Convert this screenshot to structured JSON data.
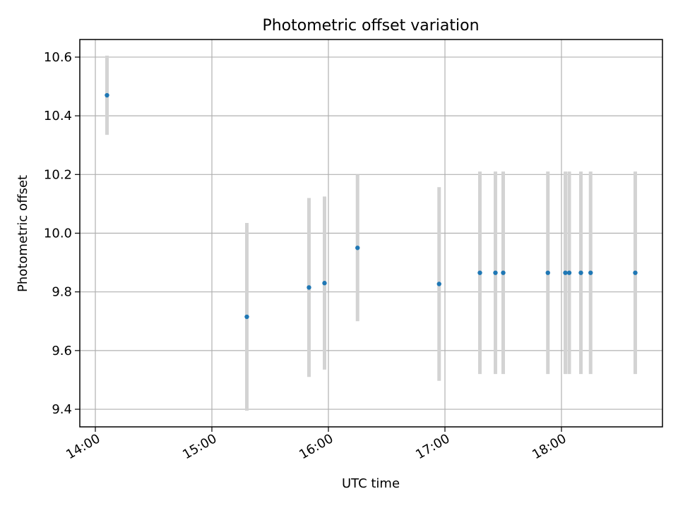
{
  "chart_data": {
    "type": "scatter",
    "title": "Photometric offset variation",
    "xlabel": "UTC time",
    "ylabel": "Photometric offset",
    "x_ticks": [
      "14:00",
      "15:00",
      "16:00",
      "17:00",
      "18:00"
    ],
    "y_ticks": [
      "9.4",
      "9.6",
      "9.8",
      "10.0",
      "10.2",
      "10.4",
      "10.6"
    ],
    "xlim": [
      "13:52",
      "18:52"
    ],
    "ylim": [
      9.34,
      10.66
    ],
    "grid": true,
    "series": [
      {
        "x": [
          "14:06",
          "15:18",
          "15:50",
          "15:58",
          "16:15",
          "16:57",
          "17:18",
          "17:26",
          "17:30",
          "17:53",
          "18:02",
          "18:04",
          "18:10",
          "18:15",
          "18:38"
        ],
        "y": [
          10.47,
          9.715,
          9.815,
          9.83,
          9.95,
          9.827,
          9.865,
          9.865,
          9.865,
          9.865,
          9.865,
          9.865,
          9.865,
          9.865,
          9.865
        ],
        "yerr": [
          0.135,
          0.32,
          0.305,
          0.295,
          0.25,
          0.33,
          0.345,
          0.345,
          0.345,
          0.345,
          0.345,
          0.345,
          0.345,
          0.345,
          0.345
        ],
        "marker_color": "#1f77b4",
        "errorbar_color": "#d3d3d3"
      }
    ]
  },
  "colors": {
    "grid": "#b0b0b0",
    "axes": "#000000"
  }
}
